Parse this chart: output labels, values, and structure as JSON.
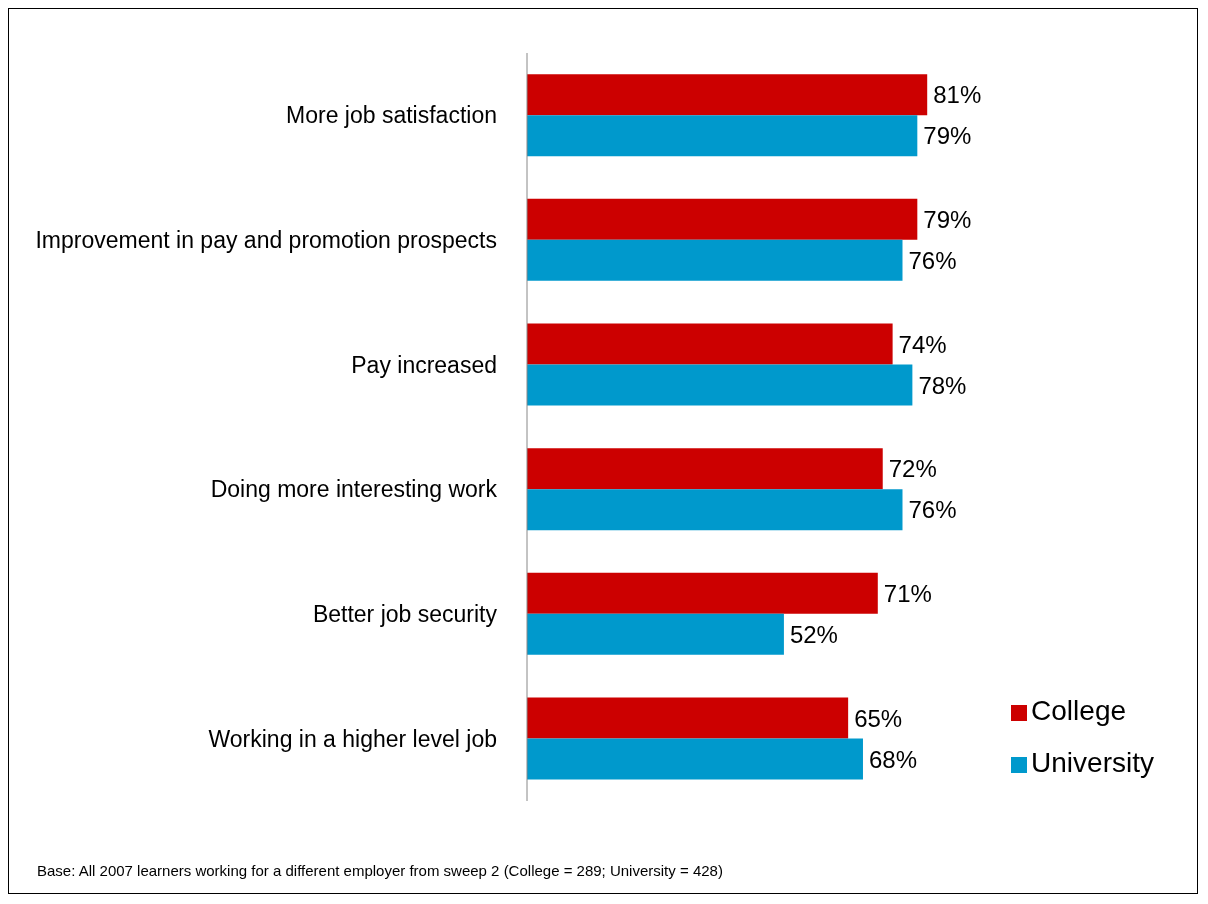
{
  "chart_data": {
    "type": "bar",
    "orientation": "horizontal",
    "categories": [
      "More job satisfaction",
      "Improvement in pay and promotion prospects",
      "Pay increased",
      "Doing more interesting work",
      "Better job security",
      "Working in a higher level job"
    ],
    "series": [
      {
        "name": "College",
        "color": "#cc0000",
        "values": [
          81,
          79,
          74,
          72,
          71,
          65
        ],
        "value_labels": [
          "81%",
          "79%",
          "74%",
          "72%",
          "71%",
          "65%"
        ]
      },
      {
        "name": "University",
        "color": "#0099cc",
        "values": [
          79,
          76,
          78,
          76,
          52,
          68
        ],
        "value_labels": [
          "79%",
          "76%",
          "78%",
          "76%",
          "52%",
          "68%"
        ]
      }
    ],
    "legend": "bottom right",
    "annotations": [
      "Base: All 2007 learners working for a different employer from sweep 2 (College = 289; University = 428)"
    ]
  }
}
